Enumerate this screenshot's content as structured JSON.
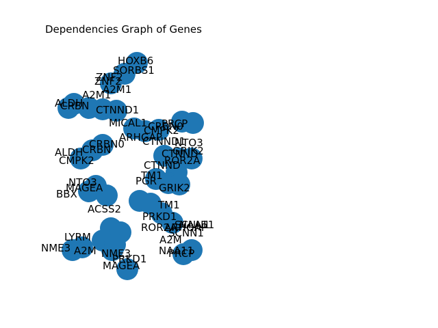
{
  "title": "Dependencies Graph of Genes",
  "node_color": "#1f77b4",
  "labels": [
    "HOXB6",
    "SORBS1",
    "ZNF2",
    "A2M1",
    "MICAL1",
    "ARHGAP",
    "CRBN",
    "NTO3",
    "PGR",
    "BBX",
    "ACSS2",
    "TM1",
    "PRKD1",
    "SCNN1",
    "ROR2A",
    "CTNND",
    "A2M",
    "NAA11",
    "LYRM",
    "NME3",
    "GRIK2",
    "CRBN0",
    "ALDH",
    "CMPK2",
    "CTNND1",
    "PRCP",
    "MAGEA"
  ]
}
